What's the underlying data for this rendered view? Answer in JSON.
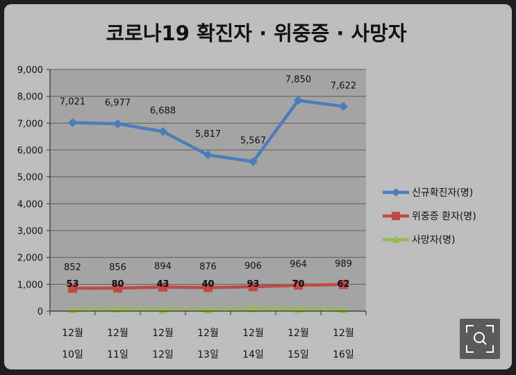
{
  "chart_data": {
    "type": "line",
    "title": "코로나19 확진자 · 위중증 · 사망자",
    "categories": [
      [
        "12월",
        "10일"
      ],
      [
        "12월",
        "11일"
      ],
      [
        "12월",
        "12일"
      ],
      [
        "12월",
        "13일"
      ],
      [
        "12월",
        "14일"
      ],
      [
        "12월",
        "15일"
      ],
      [
        "12월",
        "16일"
      ]
    ],
    "ylim": [
      0,
      9000
    ],
    "yticks": [
      0,
      1000,
      2000,
      3000,
      4000,
      5000,
      6000,
      7000,
      8000,
      9000
    ],
    "ytick_labels": [
      "0",
      "1,000",
      "2,000",
      "3,000",
      "4,000",
      "5,000",
      "6,000",
      "7,000",
      "8,000",
      "9,000"
    ],
    "grid": true,
    "legend_position": "right",
    "series": [
      {
        "name": "신규확진자(명)",
        "color": "#4a7ebb",
        "marker": "diamond",
        "values": [
          7021,
          6977,
          6688,
          5817,
          5567,
          7850,
          7622
        ],
        "labels": [
          "7,021",
          "6,977",
          "6,688",
          "5,817",
          "5,567",
          "7,850",
          "7,622"
        ],
        "label_position": "above"
      },
      {
        "name": "위중증 환자(명)",
        "color": "#be4b48",
        "marker": "square",
        "values": [
          852,
          856,
          894,
          876,
          906,
          964,
          989
        ],
        "labels": [
          "852",
          "856",
          "894",
          "876",
          "906",
          "964",
          "989"
        ],
        "label_position": "above"
      },
      {
        "name": "사망자(명)",
        "color": "#98b954",
        "marker": "triangle",
        "values": [
          53,
          80,
          43,
          40,
          93,
          70,
          62
        ],
        "labels": [
          "53",
          "80",
          "43",
          "40",
          "93",
          "70",
          "62"
        ],
        "label_position": "on-line"
      }
    ]
  },
  "zoom_button": {
    "icon": "zoom-expand-icon"
  }
}
